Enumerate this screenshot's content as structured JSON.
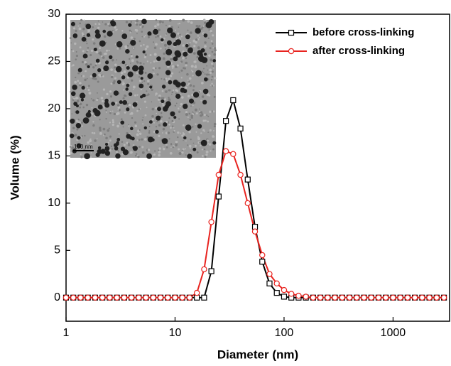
{
  "chart_data": {
    "type": "line",
    "x_label": "Diameter (nm)",
    "y_label": "Volume (%)",
    "log_x": true,
    "legend": "upper right",
    "xlim": [
      1,
      3300
    ],
    "xticks": [
      1,
      10,
      100,
      1000
    ],
    "ylim": [
      -2.5,
      30
    ],
    "yticks": [
      0,
      5,
      10,
      15,
      20,
      25,
      30
    ],
    "inset_scale_label": "100 nm",
    "x": [
      1,
      1.166,
      1.359,
      1.585,
      1.848,
      2.154,
      2.512,
      2.929,
      3.415,
      3.981,
      4.642,
      5.412,
      6.31,
      7.356,
      8.577,
      10,
      11.66,
      13.59,
      15.85,
      18.48,
      21.54,
      25.12,
      29.29,
      34.15,
      39.81,
      46.42,
      54.12,
      63.1,
      73.56,
      85.77,
      100,
      116.6,
      135.9,
      158.5,
      184.8,
      215.4,
      251.2,
      292.9,
      341.5,
      398.1,
      464.2,
      541.2,
      631,
      735.6,
      857.7,
      1000,
      1166,
      1359,
      1585,
      1848,
      2154,
      2512,
      2929
    ],
    "series": [
      {
        "name": "before cross-linking",
        "color": "#000000",
        "marker": "square",
        "values": [
          0,
          0,
          0,
          0,
          0,
          0,
          0,
          0,
          0,
          0,
          0,
          0,
          0,
          0,
          0,
          0,
          0,
          0,
          0,
          0,
          2.8,
          10.7,
          18.7,
          20.9,
          17.9,
          12.5,
          7.5,
          3.8,
          1.5,
          0.5,
          0.1,
          0,
          0,
          0,
          0,
          0,
          0,
          0,
          0,
          0,
          0,
          0,
          0,
          0,
          0,
          0,
          0,
          0,
          0,
          0,
          0,
          0,
          0
        ]
      },
      {
        "name": "after cross-linking",
        "color": "#e8231f",
        "marker": "circle",
        "values": [
          0,
          0,
          0,
          0,
          0,
          0,
          0,
          0,
          0,
          0,
          0,
          0,
          0,
          0,
          0,
          0,
          0,
          0,
          0.5,
          3,
          8,
          13,
          15.5,
          15.2,
          13,
          10,
          7,
          4.5,
          2.5,
          1.5,
          0.8,
          0.4,
          0.2,
          0.1,
          0,
          0,
          0,
          0,
          0,
          0,
          0,
          0,
          0,
          0,
          0,
          0,
          0,
          0,
          0,
          0,
          0,
          0,
          0
        ]
      }
    ]
  }
}
